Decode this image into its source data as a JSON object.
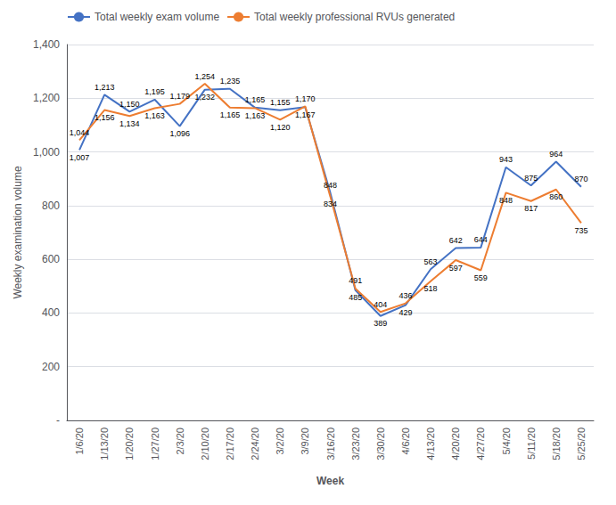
{
  "chart_data": {
    "type": "line",
    "xlabel": "Week",
    "ylabel": "Weekly examination volume",
    "categories": [
      "1/6/20",
      "1/13/20",
      "1/20/20",
      "1/27/20",
      "2/3/20",
      "2/10/20",
      "2/17/20",
      "2/24/20",
      "3/2/20",
      "3/9/20",
      "3/16/20",
      "3/23/20",
      "3/30/20",
      "4/6/20",
      "4/13/20",
      "4/20/20",
      "4/27/20",
      "5/4/20",
      "5/11/20",
      "5/18/20",
      "5/25/20"
    ],
    "series": [
      {
        "name": "Total weekly exam volume",
        "color": "#4472C4",
        "values": [
          1007,
          1213,
          1150,
          1195,
          1096,
          1232,
          1235,
          1165,
          1155,
          1167,
          848,
          485,
          389,
          429,
          563,
          642,
          644,
          943,
          875,
          964,
          870
        ],
        "value_labels": [
          "1,007",
          "1,213",
          "1,150",
          "1,195",
          "1,096",
          "1,232",
          "1,235",
          "1,165",
          "1,155",
          "1,167",
          "848",
          "485",
          "389",
          "429",
          "563",
          "642",
          "644",
          "943",
          "875",
          "964",
          "870"
        ]
      },
      {
        "name": "Total weekly professional RVUs generated",
        "color": "#ED7D31",
        "values": [
          1044,
          1156,
          1134,
          1163,
          1179,
          1254,
          1165,
          1163,
          1120,
          1170,
          834,
          491,
          404,
          436,
          518,
          597,
          559,
          848,
          817,
          860,
          735
        ],
        "value_labels": [
          "1,044",
          "1,156",
          "1,134",
          "1,163",
          "1,179",
          "1,254",
          "1,165",
          "1,163",
          "1,120",
          "1,170",
          "834",
          "491",
          "404",
          "436",
          "518",
          "597",
          "559",
          "848",
          "817",
          "860",
          "735"
        ]
      }
    ],
    "ylim": [
      0,
      1400
    ],
    "yticks": [
      {
        "value": 0,
        "label": "-"
      },
      200,
      400,
      600,
      800,
      {
        "value": 1000,
        "label": "1,000"
      },
      {
        "value": 1200,
        "label": "1,200"
      },
      {
        "value": 1400,
        "label": "1,400"
      }
    ],
    "grid": true,
    "legend": "upper left",
    "data_labels": true
  }
}
